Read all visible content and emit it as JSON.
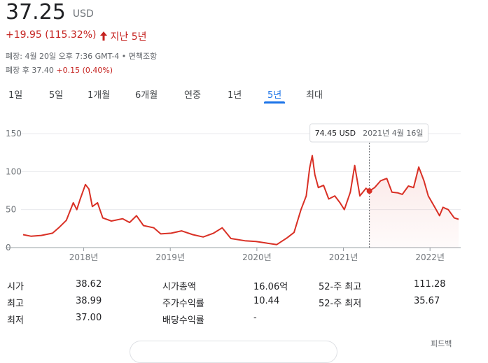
{
  "quote": {
    "price": "37.25",
    "currency": "USD",
    "change": "+19.95 (115.32%)",
    "period": "지난 5년",
    "closed": "폐장: 4월 20일 오후 7:36 GMT-4",
    "disclaimer": "면책조항",
    "after_hours_label": "폐장 후",
    "after_hours_price": "37.40",
    "after_hours_change": "+0.15 (0.40%)"
  },
  "tabs": [
    "1일",
    "5일",
    "1개월",
    "6개월",
    "연중",
    "1년",
    "5년",
    "최대"
  ],
  "selected_tab": 6,
  "chart_data": {
    "type": "line",
    "x": [
      2017.3,
      2017.39,
      2017.51,
      2017.64,
      2017.72,
      2017.8,
      2017.88,
      2017.92,
      2017.96,
      2018.02,
      2018.06,
      2018.1,
      2018.16,
      2018.22,
      2018.32,
      2018.45,
      2018.53,
      2018.61,
      2018.69,
      2018.81,
      2018.89,
      2019.01,
      2019.13,
      2019.26,
      2019.38,
      2019.5,
      2019.6,
      2019.7,
      2019.86,
      2019.99,
      2020.11,
      2020.23,
      2020.35,
      2020.43,
      2020.51,
      2020.57,
      2020.61,
      2020.64,
      2020.67,
      2020.71,
      2020.77,
      2020.83,
      2020.9,
      2020.96,
      2021.01,
      2021.08,
      2021.13,
      2021.19,
      2021.26,
      2021.3,
      2021.36,
      2021.43,
      2021.5,
      2021.56,
      2021.63,
      2021.68,
      2021.75,
      2021.81,
      2021.87,
      2021.93,
      2021.98,
      2022.05,
      2022.11,
      2022.15,
      2022.21,
      2022.28,
      2022.33
    ],
    "series": [
      {
        "color": "#d93025",
        "values": [
          17,
          15,
          16,
          19,
          27,
          36,
          59,
          50,
          64,
          83,
          77,
          54,
          59,
          39,
          35,
          38,
          33,
          42,
          29,
          26,
          18,
          19,
          22,
          17,
          14,
          19,
          26,
          12,
          9,
          8,
          6,
          4,
          13,
          20,
          50,
          68,
          105,
          121,
          96,
          79,
          82,
          64,
          68,
          59,
          50,
          73,
          108,
          68,
          78,
          74.45,
          79,
          88,
          91,
          73,
          72,
          70,
          81,
          79,
          106,
          88,
          68,
          54,
          42,
          53,
          50,
          39,
          37.25
        ]
      }
    ],
    "xlim": [
      2017.3,
      2022.33
    ],
    "xticks": [
      {
        "value": 2018,
        "label": "2018년"
      },
      {
        "value": 2019,
        "label": "2019년"
      },
      {
        "value": 2020,
        "label": "2020년"
      },
      {
        "value": 2021,
        "label": "2021년"
      },
      {
        "value": 2022,
        "label": "2022년"
      }
    ],
    "ylim": [
      0,
      150
    ],
    "yticks": [
      0,
      50,
      100,
      150
    ],
    "grid": true,
    "tooltip": {
      "x": 2021.3,
      "value": 74.45,
      "label": "74.45 USD",
      "date": "2021년 4월 16일"
    }
  },
  "stats": {
    "rows": [
      [
        "시가",
        "38.62",
        "시가총액",
        "16.06억",
        "52-주 최고",
        "111.28"
      ],
      [
        "최고",
        "38.99",
        "주가수익률",
        "10.44",
        "52-주 최저",
        "35.67"
      ],
      [
        "최저",
        "37.00",
        "배당수익률",
        "-"
      ]
    ]
  },
  "feedback": "피드백"
}
